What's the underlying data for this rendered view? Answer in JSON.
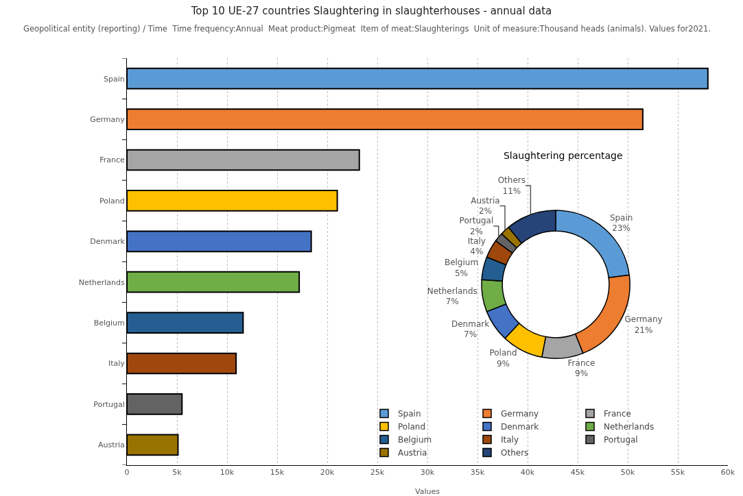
{
  "chart_data": [
    {
      "type": "bar",
      "orientation": "horizontal",
      "title": "Top 10 UE-27 countries Slaughtering in slaughterhouses - annual data",
      "subtitle": "Geopolitical entity (reporting) / Time  Time frequency:Annual  Meat product:Pigmeat  Item of meat:Slaughterings  Unit of measure:Thousand heads (animals). Values for2021.",
      "xlabel": "Values",
      "categories": [
        "Spain",
        "Germany",
        "France",
        "Poland",
        "Denmark",
        "Netherlands",
        "Belgium",
        "Italy",
        "Portugal",
        "Austria"
      ],
      "values": [
        58000,
        51500,
        23200,
        21000,
        18400,
        17200,
        11600,
        10900,
        5500,
        5100
      ],
      "colors": [
        "#5b9bd5",
        "#ed7d31",
        "#a5a5a5",
        "#ffc000",
        "#4472c4",
        "#70ad47",
        "#255e91",
        "#9e480e",
        "#636363",
        "#997300"
      ],
      "xlim": [
        0,
        60000
      ],
      "xticks": [
        0,
        {
          "value": 5000,
          "label": "5k"
        },
        {
          "value": 10000,
          "label": "10k"
        },
        {
          "value": 15000,
          "label": "15k"
        },
        {
          "value": 20000,
          "label": "20k"
        },
        {
          "value": 25000,
          "label": "25k"
        },
        {
          "value": 30000,
          "label": "30k"
        },
        {
          "value": 35000,
          "label": "35k"
        },
        {
          "value": 40000,
          "label": "40k"
        },
        {
          "value": 45000,
          "label": "45k"
        },
        {
          "value": 50000,
          "label": "50k"
        },
        {
          "value": 55000,
          "label": "55k"
        },
        {
          "value": 60000,
          "label": "60k"
        }
      ],
      "grid": "x",
      "legend": false
    },
    {
      "type": "donut",
      "title": "Slaughtering percentage",
      "categories": [
        "Spain",
        "Germany",
        "France",
        "Poland",
        "Denmark",
        "Netherlands",
        "Belgium",
        "Italy",
        "Portugal",
        "Austria",
        "Others"
      ],
      "values": [
        23,
        21,
        9,
        9,
        7,
        7,
        5,
        4,
        2,
        2,
        11
      ],
      "value_labels": [
        "23%",
        "21%",
        "9%",
        "9%",
        "7%",
        "7%",
        "5%",
        "4%",
        "2%",
        "2%",
        "11%"
      ],
      "colors": [
        "#5b9bd5",
        "#ed7d31",
        "#a5a5a5",
        "#ffc000",
        "#4472c4",
        "#70ad47",
        "#255e91",
        "#9e480e",
        "#636363",
        "#997300",
        "#264478"
      ],
      "legend": "bottom"
    }
  ]
}
